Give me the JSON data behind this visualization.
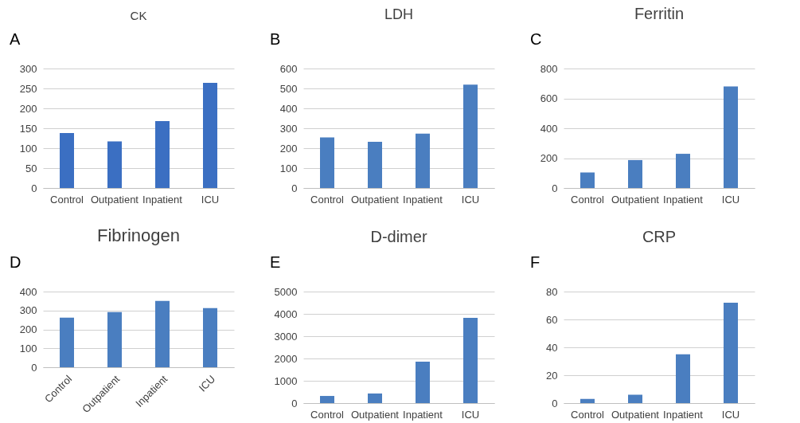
{
  "chart_data": [
    {
      "type": "bar",
      "title": "CK",
      "annotations": [
        "A"
      ],
      "categories": [
        "Control",
        "Outpatient",
        "Inpatient",
        "ICU"
      ],
      "values": [
        138,
        117,
        168,
        264
      ],
      "color": "#3b6fc2",
      "ylim": [
        0,
        300
      ],
      "yticks": [
        0,
        50,
        100,
        150,
        200,
        250,
        300
      ],
      "grid": "y"
    },
    {
      "type": "bar",
      "title": "LDH",
      "annotations": [
        "B"
      ],
      "categories": [
        "Control",
        "Outpatient",
        "Inpatient",
        "ICU"
      ],
      "values": [
        254,
        232,
        273,
        519
      ],
      "color": "#4a7ec0",
      "ylim": [
        0,
        600
      ],
      "yticks": [
        0,
        100,
        200,
        300,
        400,
        500,
        600
      ],
      "grid": "y"
    },
    {
      "type": "bar",
      "title": "Ferritin",
      "annotations": [
        "C"
      ],
      "categories": [
        "Control",
        "Outpatient",
        "Inpatient",
        "ICU"
      ],
      "values": [
        104,
        187,
        229,
        680
      ],
      "color": "#4a7ec0",
      "ylim": [
        0,
        800
      ],
      "yticks": [
        0,
        200,
        400,
        600,
        800
      ],
      "grid": "y"
    },
    {
      "type": "bar",
      "title": "Fibrinogen",
      "annotations": [
        "D"
      ],
      "categories": [
        "Control",
        "Outpatient",
        "Inpatient",
        "ICU"
      ],
      "values": [
        262,
        292,
        351,
        313
      ],
      "color": "#4a7ec0",
      "ylim": [
        0,
        400
      ],
      "yticks": [
        0,
        100,
        200,
        300,
        400
      ],
      "grid": "y"
    },
    {
      "type": "bar",
      "title": "D-dimer",
      "annotations": [
        "E"
      ],
      "categories": [
        "Control",
        "Outpatient",
        "Inpatient",
        "ICU"
      ],
      "values": [
        320,
        430,
        1860,
        3820
      ],
      "color": "#4a7ec0",
      "ylim": [
        0,
        5000
      ],
      "yticks": [
        0,
        1000,
        2000,
        3000,
        4000,
        5000
      ],
      "grid": "y"
    },
    {
      "type": "bar",
      "title": "CRP",
      "annotations": [
        "F"
      ],
      "categories": [
        "Control",
        "Outpatient",
        "Inpatient",
        "ICU"
      ],
      "values": [
        3,
        6,
        35,
        72
      ],
      "color": "#4a7ec0",
      "ylim": [
        0,
        80
      ],
      "yticks": [
        0,
        20,
        40,
        60,
        80
      ],
      "grid": "y"
    }
  ]
}
